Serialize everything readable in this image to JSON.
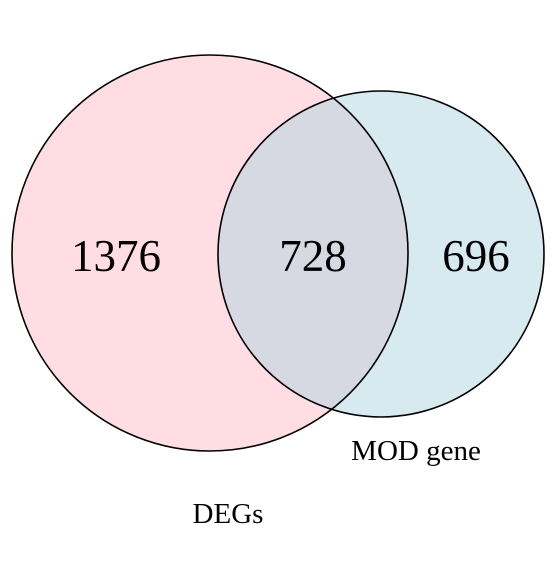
{
  "venn": {
    "sets": [
      {
        "key": "degs",
        "label": "DEGs",
        "color": "#ffdde3"
      },
      {
        "key": "mod",
        "label": "MOD gene",
        "color": "#d6eaf0"
      }
    ],
    "regions": {
      "degs_only": "1376",
      "intersection": "728",
      "mod_only": "696"
    },
    "colors": {
      "intersection": "#d6d8e2",
      "outline": "#000000"
    }
  }
}
